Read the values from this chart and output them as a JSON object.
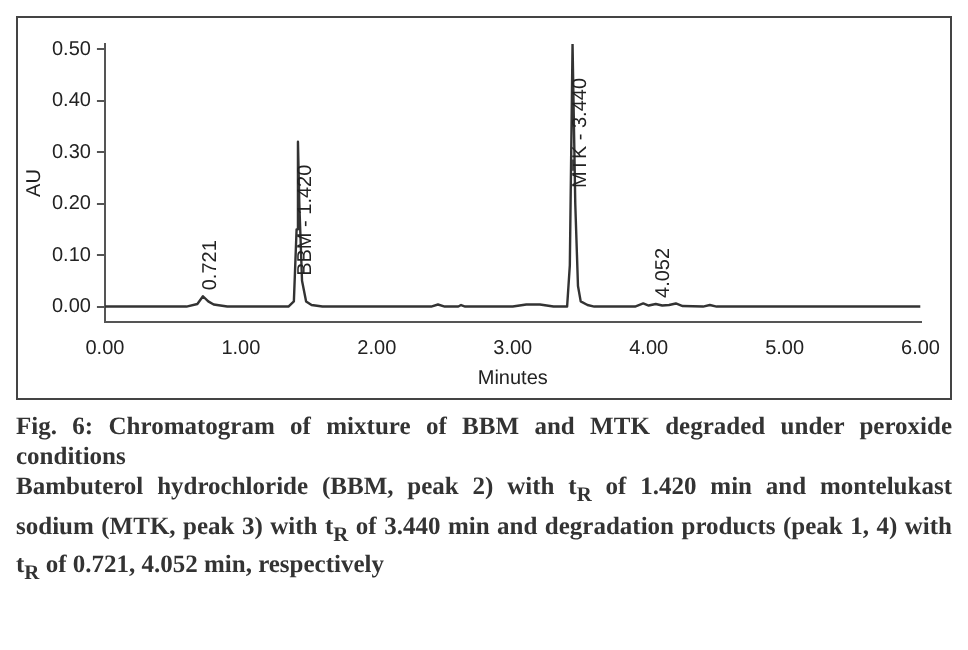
{
  "chart_data": {
    "type": "line",
    "title": "Fig. 6: Chromatogram of mixture of BBM and MTK degraded under peroxide conditions",
    "xlabel": "Minutes",
    "ylabel": "AU",
    "annotations": [
      {
        "text": "0.721",
        "x": 0.721,
        "y": 0.02
      },
      {
        "text": "BBM - 1.420",
        "x": 1.42,
        "y": 0.32
      },
      {
        "text": "MTK - 3.440",
        "x": 3.44,
        "y": 0.51
      },
      {
        "text": "4.052",
        "x": 4.052,
        "y": 0.005
      },
      "Bambuterol hydrochloride (BBM, peak 2) with t$_{R}$ of 1.420 min and montelukast sodium (MTK, peak 3) with t$_{R}$ of 3.440 min and degradation products (peak 1, 4) with t$_{R}$ of 0.721, 4.052 min, respectively"
    ],
    "x": [
      0,
      0.6,
      0.68,
      0.721,
      0.76,
      0.8,
      0.9,
      1.35,
      1.39,
      1.41,
      1.42,
      1.43,
      1.45,
      1.48,
      1.52,
      1.6,
      2.4,
      2.45,
      2.5,
      2.6,
      2.62,
      2.65,
      3.0,
      3.1,
      3.2,
      3.3,
      3.4,
      3.42,
      3.44,
      3.46,
      3.48,
      3.5,
      3.55,
      3.6,
      3.9,
      3.96,
      4.0,
      4.052,
      4.1,
      4.15,
      4.2,
      4.25,
      4.4,
      4.45,
      4.5,
      6.0
    ],
    "series": [
      {
        "color": "#333333",
        "values": [
          0,
          0,
          0.005,
          0.02,
          0.01,
          0.004,
          0,
          0,
          0.01,
          0.15,
          0.32,
          0.2,
          0.05,
          0.01,
          0.003,
          0,
          0,
          0.004,
          0,
          0,
          0.003,
          0,
          0,
          0.004,
          0.004,
          0,
          0,
          0.08,
          0.51,
          0.2,
          0.04,
          0.01,
          0.003,
          0,
          0,
          0.006,
          0.002,
          0.005,
          0.002,
          0.003,
          0.006,
          0.001,
          0,
          0.003,
          0,
          0
        ]
      }
    ],
    "xlim": [
      0,
      6
    ],
    "xticks": [
      {
        "value": 0,
        "label": "0.00"
      },
      {
        "value": 1,
        "label": "1.00"
      },
      {
        "value": 2,
        "label": "2.00"
      },
      {
        "value": 3,
        "label": "3.00"
      },
      {
        "value": 4,
        "label": "4.00"
      },
      {
        "value": 5,
        "label": "5.00"
      },
      {
        "value": 6,
        "label": "6.00"
      }
    ],
    "ylim": [
      -0.03,
      0.51
    ],
    "yticks": [
      {
        "value": 0,
        "label": "0.00"
      },
      {
        "value": 0.1,
        "label": "0.10"
      },
      {
        "value": 0.2,
        "label": "0.20"
      },
      {
        "value": 0.3,
        "label": "0.30"
      },
      {
        "value": 0.4,
        "label": "0.40"
      },
      {
        "value": 0.5,
        "label": "0.50"
      }
    ],
    "grid": false,
    "legend": false,
    "marker": "none",
    "line_style": "solid"
  }
}
